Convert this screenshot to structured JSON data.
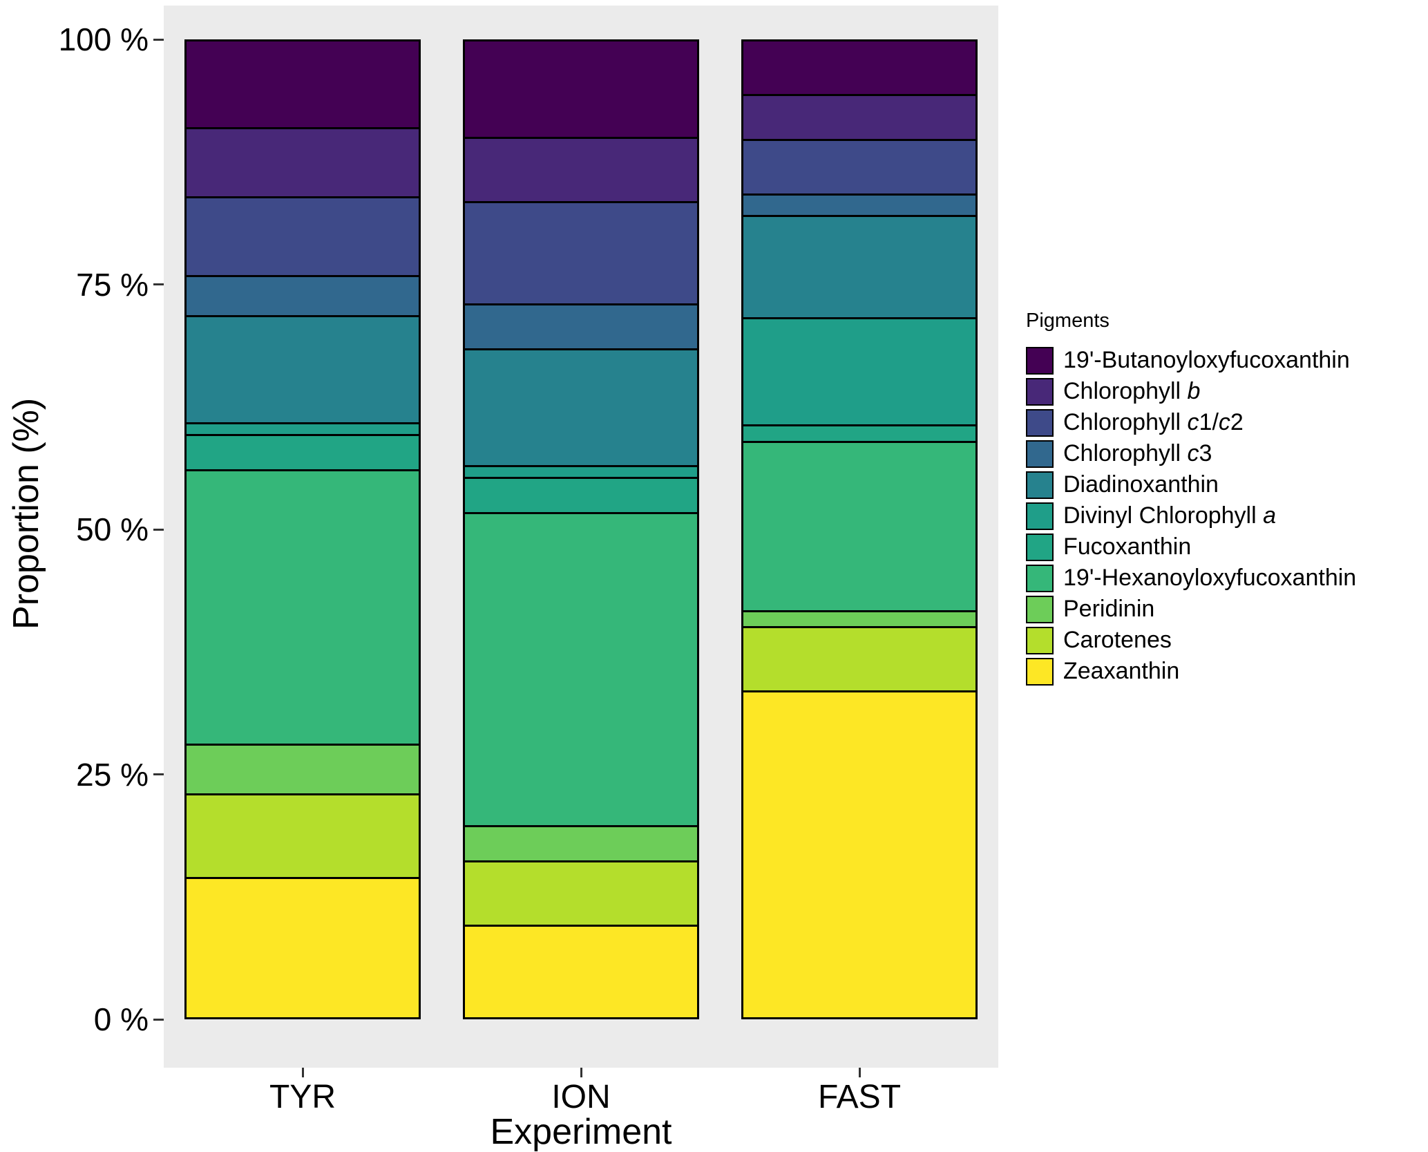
{
  "chart_data": {
    "type": "bar",
    "stacked": true,
    "orientation": "vertical",
    "title": "",
    "xlabel": "Experiment",
    "ylabel": "Proportion (%)",
    "ylim": [
      0,
      100
    ],
    "yticks": [
      {
        "value": 0,
        "label": "0 %"
      },
      {
        "value": 25,
        "label": "25 %"
      },
      {
        "value": 50,
        "label": "50 %"
      },
      {
        "value": 75,
        "label": "75 %"
      },
      {
        "value": 100,
        "label": "100 %"
      }
    ],
    "categories": [
      "TYR",
      "ION",
      "FAST"
    ],
    "legend_title": "Pigments",
    "legend_position": "right",
    "grid": false,
    "panel_bg": "#EBEBEB",
    "bar_outline": "#000000",
    "series": [
      {
        "name": "19'-Butanoyloxyfucoxanthin",
        "color": "#440154",
        "label_parts": [
          {
            "t": "19'-Butanoyloxyfucoxanthin"
          }
        ],
        "values": [
          9.0,
          10.0,
          5.5
        ]
      },
      {
        "name": "Chlorophyll b",
        "color": "#482878",
        "label_parts": [
          {
            "t": "Chlorophyll "
          },
          {
            "t": "b",
            "i": true
          }
        ],
        "values": [
          7.0,
          6.5,
          4.5
        ]
      },
      {
        "name": "Chlorophyll c1/c2",
        "color": "#3E4A89",
        "label_parts": [
          {
            "t": "Chlorophyll "
          },
          {
            "t": "c",
            "i": true
          },
          {
            "t": "1/"
          },
          {
            "t": "c",
            "i": true
          },
          {
            "t": "2"
          }
        ],
        "values": [
          8.0,
          10.5,
          5.5
        ]
      },
      {
        "name": "Chlorophyll c3",
        "color": "#31688E",
        "label_parts": [
          {
            "t": "Chlorophyll "
          },
          {
            "t": "c",
            "i": true
          },
          {
            "t": "3"
          }
        ],
        "values": [
          4.0,
          4.5,
          2.0
        ]
      },
      {
        "name": "Diadinoxanthin",
        "color": "#26828E",
        "label_parts": [
          {
            "t": "Diadinoxanthin"
          }
        ],
        "values": [
          11.0,
          12.0,
          10.5
        ]
      },
      {
        "name": "Divinyl Chlorophyll a",
        "color": "#1F9E89",
        "label_parts": [
          {
            "t": "Divinyl Chlorophyll "
          },
          {
            "t": "a",
            "i": true
          }
        ],
        "values": [
          1.0,
          1.0,
          11.0
        ]
      },
      {
        "name": "Fucoxanthin",
        "color": "#21A585",
        "label_parts": [
          {
            "t": "Fucoxanthin"
          }
        ],
        "values": [
          3.5,
          3.5,
          1.5
        ]
      },
      {
        "name": "19'-Hexanoyloxyfucoxanthin",
        "color": "#35B779",
        "label_parts": [
          {
            "t": "19'-Hexanoyloxyfucoxanthin"
          }
        ],
        "values": [
          28.5,
          32.5,
          17.5
        ]
      },
      {
        "name": "Peridinin",
        "color": "#6DCD59",
        "label_parts": [
          {
            "t": "Peridinin"
          }
        ],
        "values": [
          5.0,
          3.5,
          1.5
        ]
      },
      {
        "name": "Carotenes",
        "color": "#B4DE2C",
        "label_parts": [
          {
            "t": "Carotenes"
          }
        ],
        "values": [
          8.5,
          6.5,
          6.5
        ]
      },
      {
        "name": "Zeaxanthin",
        "color": "#FDE725",
        "label_parts": [
          {
            "t": "Zeaxanthin"
          }
        ],
        "values": [
          14.5,
          9.5,
          34.0
        ]
      }
    ]
  }
}
